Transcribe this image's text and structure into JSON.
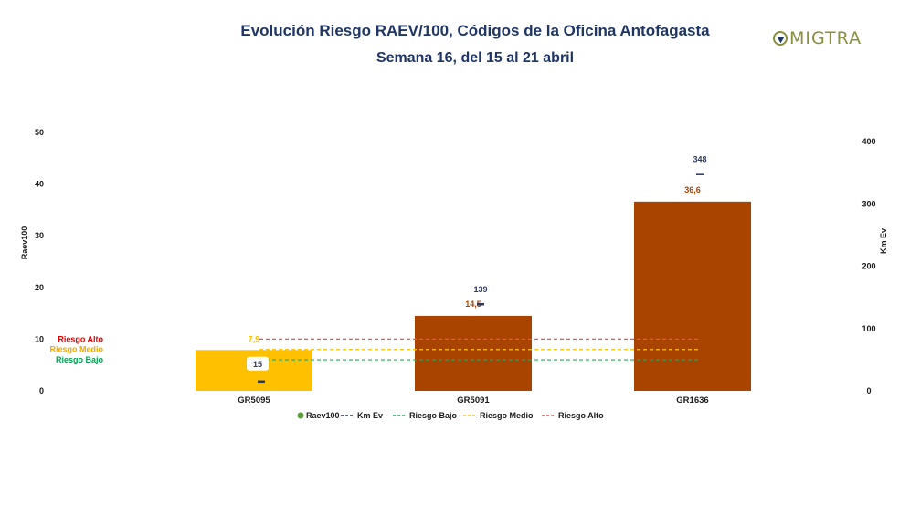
{
  "header": {
    "title": "Evolución Riesgo RAEV/100, Códigos de la Oficina Antofagasta",
    "subtitle": "Semana 16, del 15 al 21 abril",
    "logo_text": "MIGTRA"
  },
  "chart_data": {
    "type": "bar",
    "categories": [
      "GR5095",
      "GR5091",
      "GR1636"
    ],
    "y_left": {
      "label": "Raev100",
      "ticks": [
        "0",
        "10",
        "20",
        "30",
        "40",
        "50"
      ],
      "range": [
        0,
        50
      ]
    },
    "y_right": {
      "label": "Km Ev",
      "ticks": [
        "0",
        "100",
        "200",
        "300",
        "400"
      ],
      "range": [
        0,
        415
      ]
    },
    "series": [
      {
        "name": "Raev100",
        "kind": "bar",
        "axis": "left",
        "values": [
          7.9,
          14.5,
          36.6
        ],
        "labels": [
          "7,9",
          "14,5",
          "36,6"
        ],
        "colors": [
          "#ffc000",
          "#a84300",
          "#a84300"
        ],
        "label_colors": [
          "#ffc000",
          "#a84300",
          "#a84300"
        ]
      },
      {
        "name": "Km Ev",
        "kind": "marker",
        "axis": "right",
        "values": [
          15,
          139,
          348
        ],
        "labels": [
          "15",
          "139",
          "348"
        ],
        "color": "#2e3a5c"
      }
    ],
    "thresholds": [
      {
        "name": "Riesgo Bajo",
        "value": 6,
        "color": "#27a85a",
        "label_color": "#00a651"
      },
      {
        "name": "Riesgo Medio",
        "value": 8,
        "color": "#ffc000",
        "label_color": "#f4a800"
      },
      {
        "name": "Riesgo Alto",
        "value": 10,
        "color": "#f05050",
        "label_color": "#e00000"
      }
    ],
    "legend": {
      "position": "bottom",
      "items": [
        {
          "name": "Raev100",
          "symbol": "dot",
          "color": "#5a9e3a"
        },
        {
          "name": "Km Ev",
          "symbol": "dash",
          "color": "#2e3a5c"
        },
        {
          "name": "Riesgo Bajo",
          "symbol": "dash",
          "color": "#27a85a"
        },
        {
          "name": "Riesgo Medio",
          "symbol": "dash",
          "color": "#ffc000"
        },
        {
          "name": "Riesgo Alto",
          "symbol": "dash",
          "color": "#f05050"
        }
      ]
    },
    "grid": false
  }
}
